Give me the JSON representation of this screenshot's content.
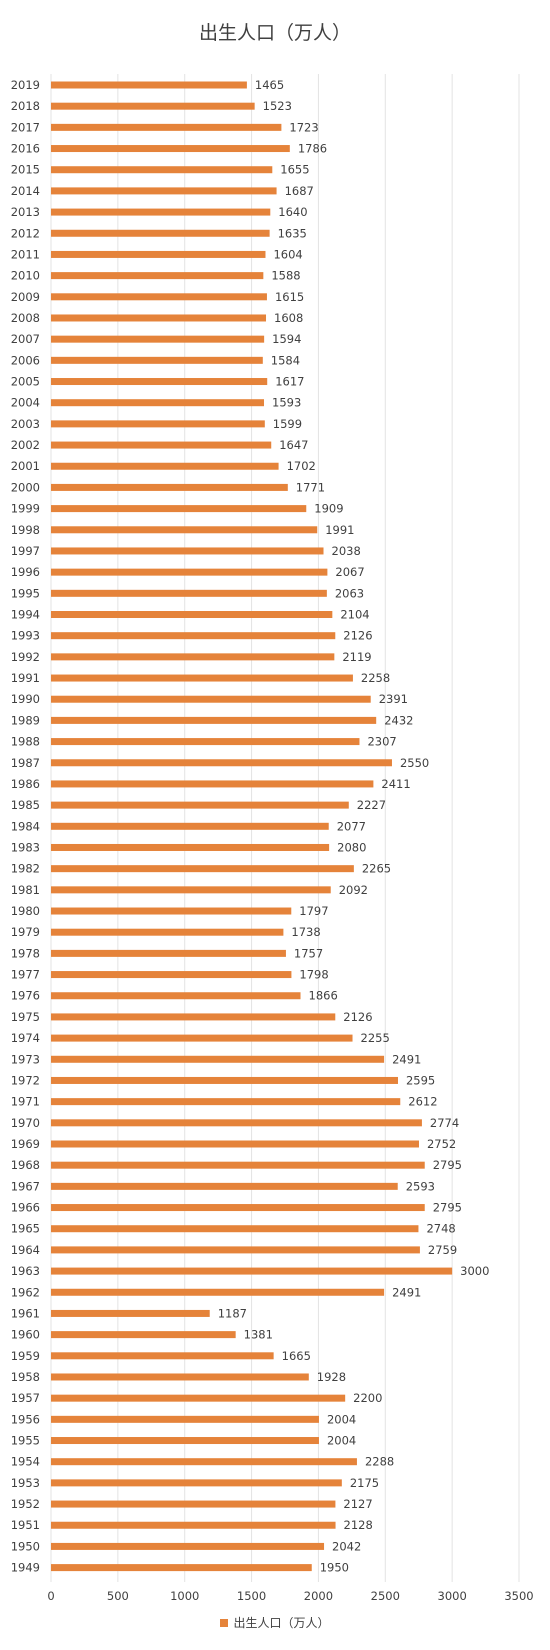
{
  "chart_data": {
    "type": "bar",
    "orientation": "horizontal",
    "title": "出生人口（万人）",
    "xlim": [
      0,
      3500
    ],
    "xticks": [
      0,
      500,
      1000,
      1500,
      2000,
      2500,
      3000,
      3500
    ],
    "grid": true,
    "legend_position": "bottom",
    "bar_color": "#E5833A",
    "series": [
      {
        "name": "出生人口（万人）",
        "categories": [
          "2019",
          "2018",
          "2017",
          "2016",
          "2015",
          "2014",
          "2013",
          "2012",
          "2011",
          "2010",
          "2009",
          "2008",
          "2007",
          "2006",
          "2005",
          "2004",
          "2003",
          "2002",
          "2001",
          "2000",
          "1999",
          "1998",
          "1997",
          "1996",
          "1995",
          "1994",
          "1993",
          "1992",
          "1991",
          "1990",
          "1989",
          "1988",
          "1987",
          "1986",
          "1985",
          "1984",
          "1983",
          "1982",
          "1981",
          "1980",
          "1979",
          "1978",
          "1977",
          "1976",
          "1975",
          "1974",
          "1973",
          "1972",
          "1971",
          "1970",
          "1969",
          "1968",
          "1967",
          "1966",
          "1965",
          "1964",
          "1963",
          "1962",
          "1961",
          "1960",
          "1959",
          "1958",
          "1957",
          "1956",
          "1955",
          "1954",
          "1953",
          "1952",
          "1951",
          "1950",
          "1949"
        ],
        "values": [
          1465,
          1523,
          1723,
          1786,
          1655,
          1687,
          1640,
          1635,
          1604,
          1588,
          1615,
          1608,
          1594,
          1584,
          1617,
          1593,
          1599,
          1647,
          1702,
          1771,
          1909,
          1991,
          2038,
          2067,
          2063,
          2104,
          2126,
          2119,
          2258,
          2391,
          2432,
          2307,
          2550,
          2411,
          2227,
          2077,
          2080,
          2265,
          2092,
          1797,
          1738,
          1757,
          1798,
          1866,
          2126,
          2255,
          2491,
          2595,
          2612,
          2774,
          2752,
          2795,
          2593,
          2795,
          2748,
          2759,
          3000,
          2491,
          1187,
          1381,
          1665,
          1928,
          2200,
          2004,
          2004,
          2288,
          2175,
          2127,
          2128,
          2042,
          1950
        ]
      }
    ]
  }
}
